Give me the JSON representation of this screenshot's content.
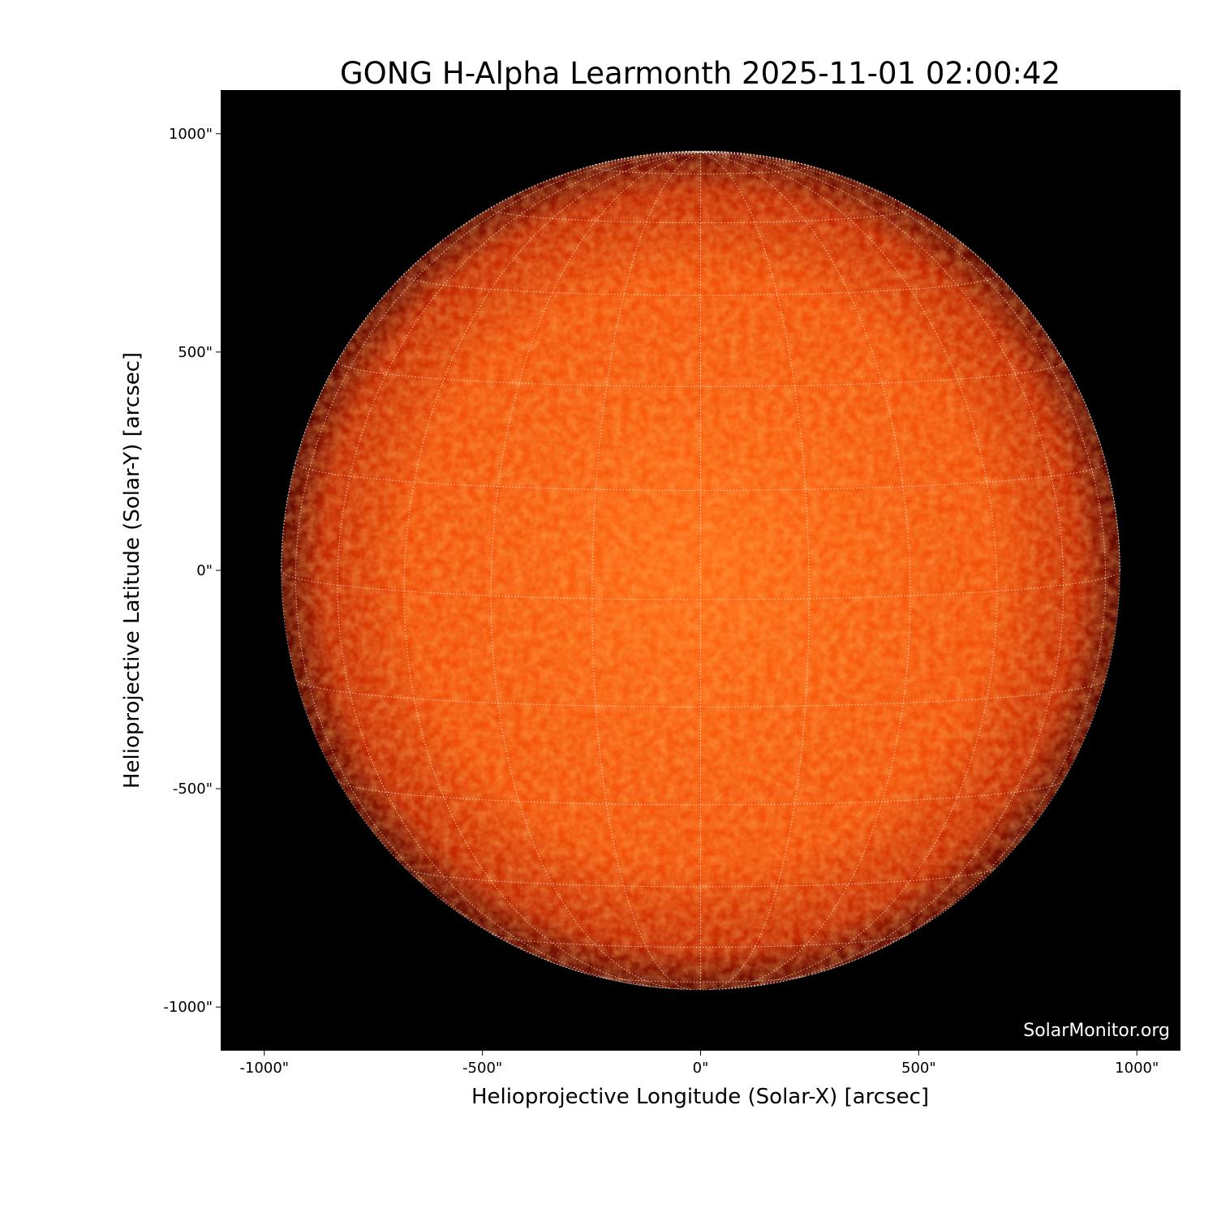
{
  "chart_data": {
    "type": "image",
    "title": "GONG H-Alpha Learmonth 2025-11-01 02:00:42",
    "xlabel": "Helioprojective Longitude (Solar-X) [arcsec]",
    "ylabel": "Helioprojective Latitude (Solar-Y) [arcsec]",
    "xlim": [
      -1100,
      1100
    ],
    "ylim": [
      -1100,
      1100
    ],
    "xticks": [
      -1000,
      -500,
      0,
      500,
      1000
    ],
    "yticks": [
      -1000,
      -500,
      0,
      500,
      1000
    ],
    "xtick_labels": [
      "-1000\"",
      "-500\"",
      "0\"",
      "500\"",
      "1000\""
    ],
    "ytick_labels": [
      "-1000\"",
      "-500\"",
      "0\"",
      "500\"",
      "1000\""
    ],
    "solar_radius_arcsec": 961,
    "grid": true,
    "grid_spacing_deg": 15,
    "colormap": "red-orange (H-alpha)",
    "colors": {
      "disk_center": "#ff6a12",
      "disk_limb": "#7a0800",
      "background": "#000000",
      "grid": "#ffffff"
    },
    "watermark": "SolarMonitor.org"
  }
}
